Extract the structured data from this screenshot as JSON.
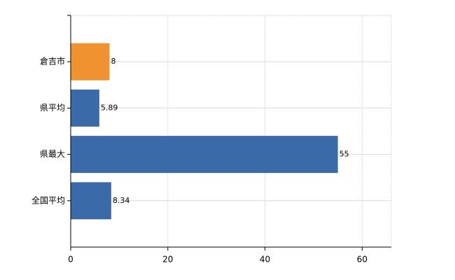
{
  "chart_data": {
    "type": "barh",
    "categories": [
      "倉吉市",
      "県平均",
      "県最大",
      "全国平均"
    ],
    "values": [
      8,
      5.89,
      55,
      8.34
    ],
    "colors": [
      "#f0922f",
      "#3a6aa7",
      "#3a6aa7",
      "#3a6aa7"
    ],
    "xlim": [
      0,
      66
    ],
    "xticks": [
      0,
      20,
      40,
      60
    ],
    "grid": true
  }
}
